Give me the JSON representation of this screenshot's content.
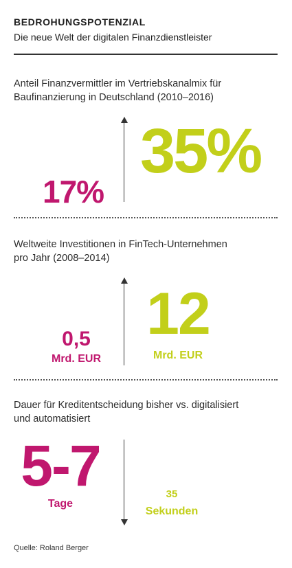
{
  "header": {
    "title": "BEDROHUNGSPOTENZIAL",
    "subtitle": "Die neue Welt der digitalen Finanzdienstleister"
  },
  "sections": [
    {
      "description_line1": "Anteil Finanzvermittler im Vertriebskanalmix für",
      "description_line2": "Baufinanzierung in Deutschland (2010–2016)",
      "before_value": "17%",
      "after_value": "35%"
    },
    {
      "description_line1": "Weltweite Investitionen in FinTech-Unternehmen",
      "description_line2": "pro Jahr (2008–2014)",
      "before_value": "0,5",
      "before_unit": "Mrd. EUR",
      "after_value": "12",
      "after_unit": "Mrd. EUR"
    },
    {
      "description_line1": "Dauer für Kreditentscheidung bisher vs. digitalisiert",
      "description_line2": "und automatisiert",
      "before_value": "5-7",
      "before_unit": "Tage",
      "after_value": "35",
      "after_unit": "Sekunden"
    }
  ],
  "footer": {
    "source": "Quelle: Roland Berger"
  },
  "colors": {
    "accent_magenta": "#c0176e",
    "accent_lime": "#c2cf1a"
  },
  "icons": [
    "arrow-up-icon",
    "arrow-down-icon"
  ]
}
